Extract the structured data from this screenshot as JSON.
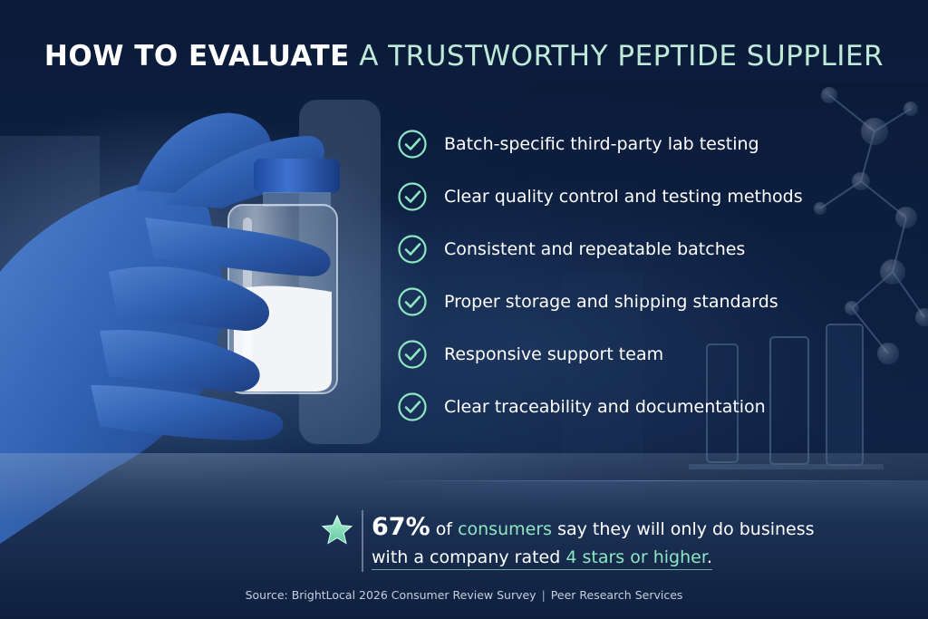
{
  "title": {
    "part1": "HOW TO EVALUATE",
    "part2": "A TRUSTWORTHY PEPTIDE SUPPLIER"
  },
  "checklist": [
    {
      "label": "Batch-specific third-party lab testing",
      "icon": "check-circle-icon"
    },
    {
      "label": "Clear quality control and testing methods",
      "icon": "check-circle-icon"
    },
    {
      "label": "Consistent and repeatable batches",
      "icon": "check-circle-icon"
    },
    {
      "label": "Proper storage and shipping standards",
      "icon": "check-circle-icon"
    },
    {
      "label": "Responsive support team",
      "icon": "check-circle-icon"
    },
    {
      "label": "Clear traceability and documentation",
      "icon": "check-circle-icon"
    }
  ],
  "stat": {
    "icon": "star-icon",
    "percent": "67%",
    "text_a": "of",
    "highlight_a": "consumers",
    "text_b": "say they will only do business",
    "text_c": "with a company",
    "text_d": "rated",
    "highlight_b": "4 stars or higher",
    "period": "."
  },
  "source": {
    "text": "Source: BrightLocal 2026 Consumer Review Survey",
    "separator": "|",
    "credit": "Peer Research Services"
  },
  "colors": {
    "accent": "#8ee6c3",
    "title_light": "#bfead8",
    "background": "#0b1a35"
  }
}
